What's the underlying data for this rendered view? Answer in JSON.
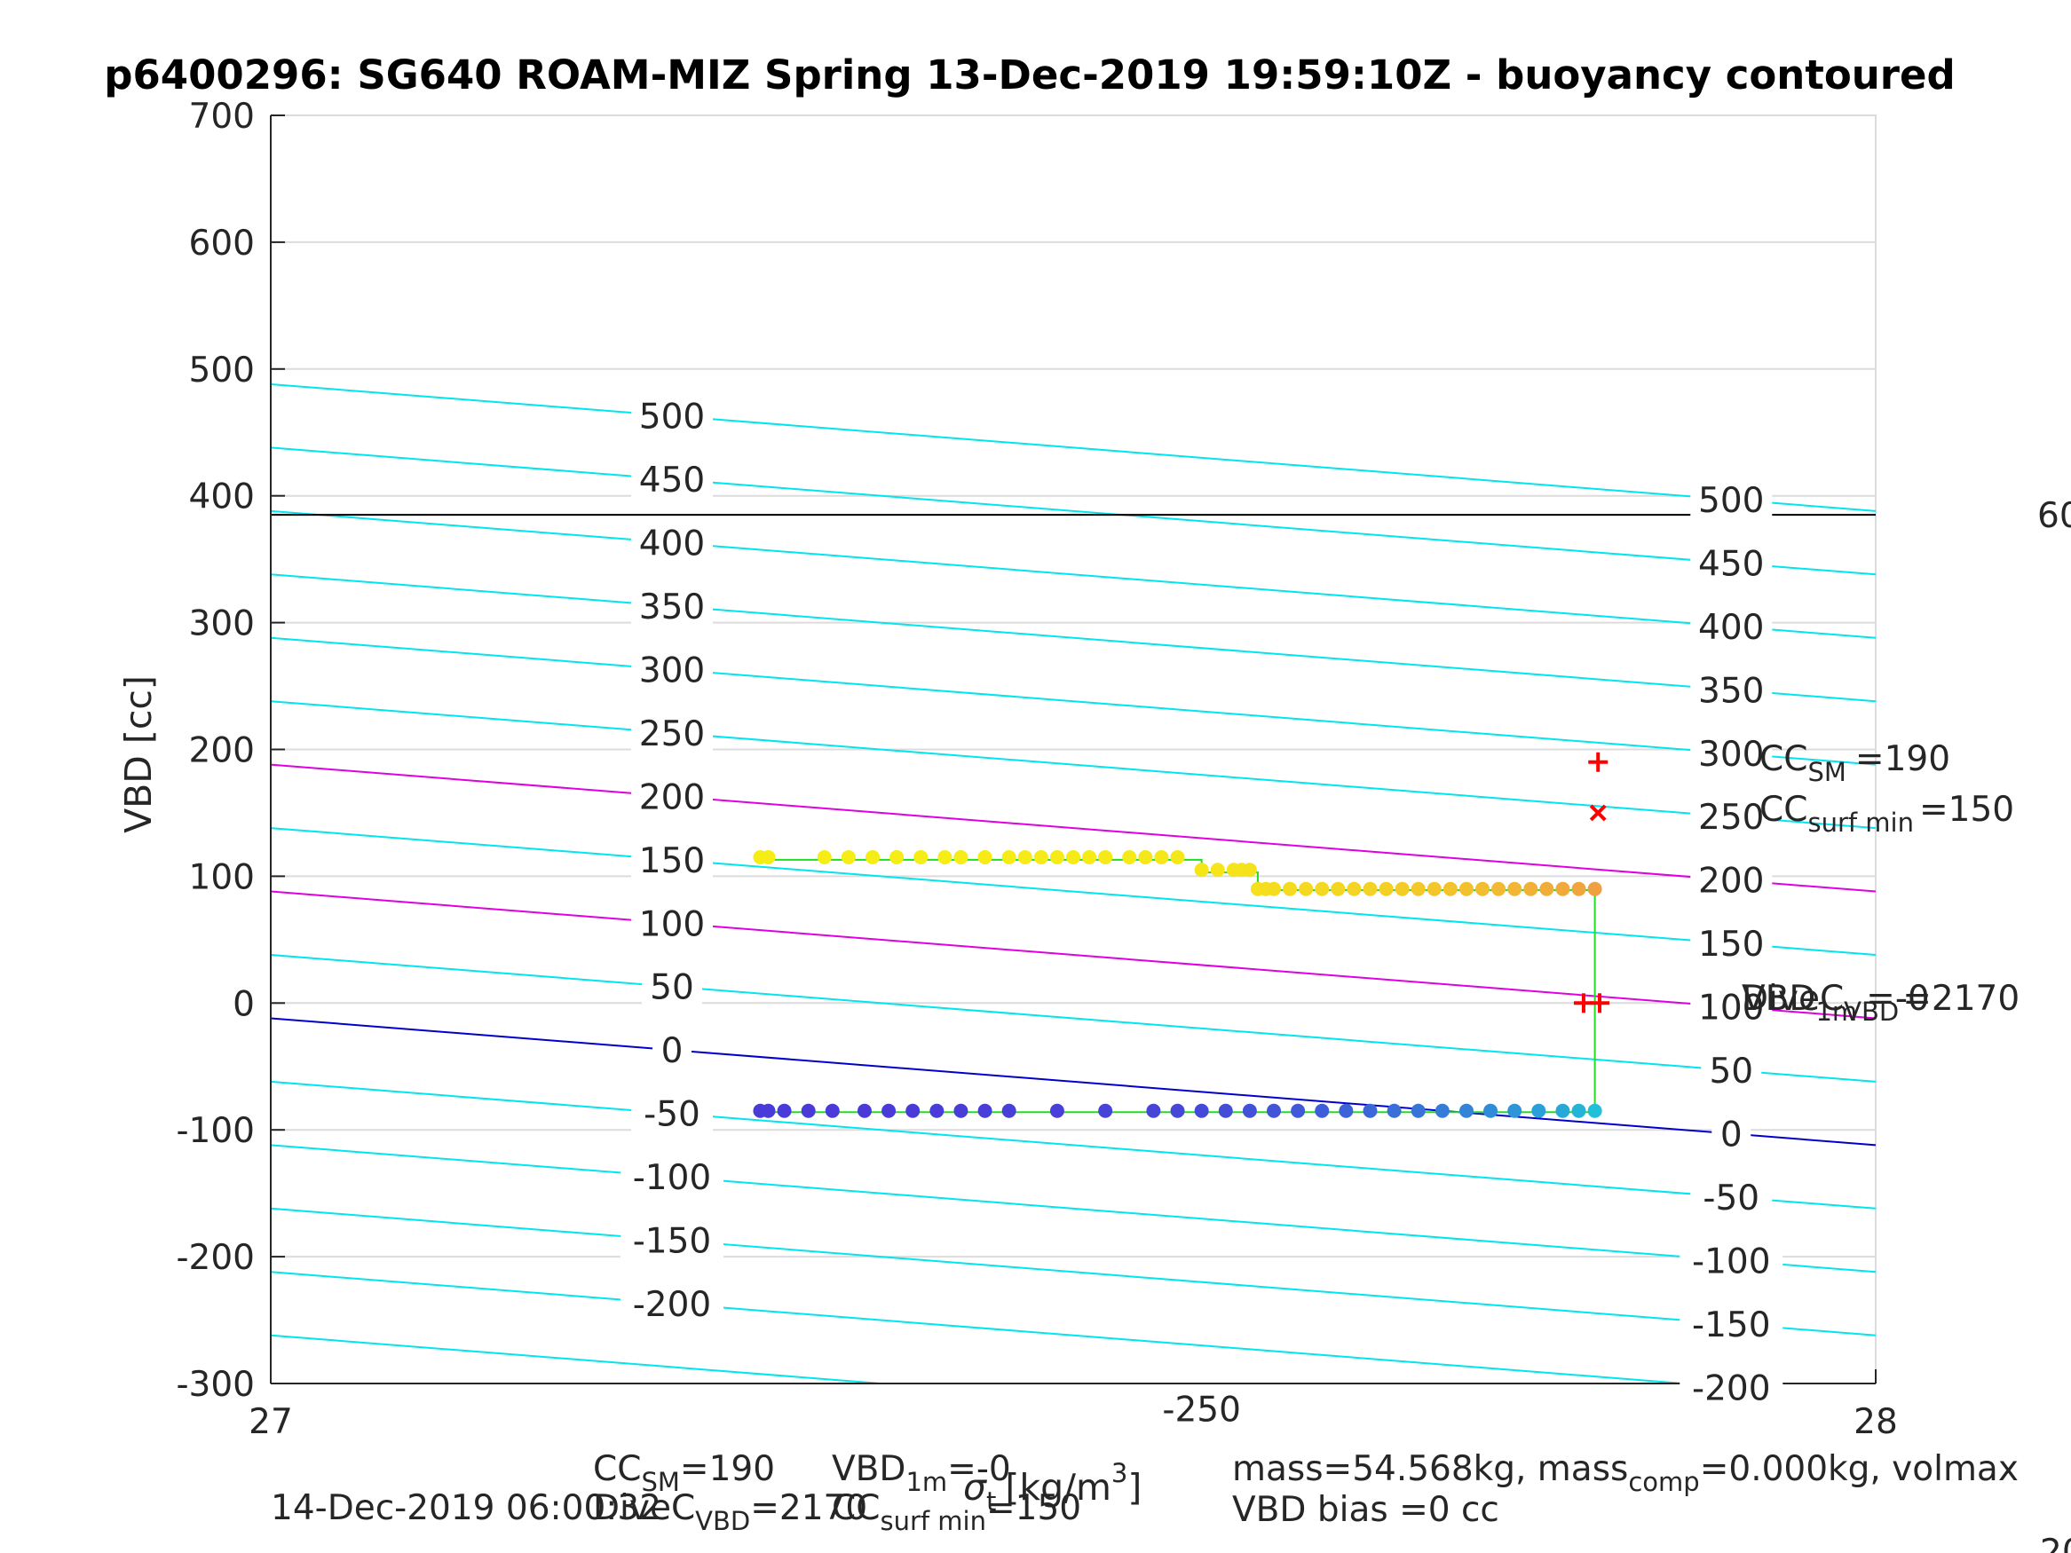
{
  "chart_data": {
    "type": "scatter",
    "title": "p6400296: SG640 ROAM-MIZ Spring 13-Dec-2019 19:59:10Z - buoyancy contoured",
    "ylabel": "VBD [cc]",
    "xlabel_parts": [
      "σ",
      "t",
      "[kg/m",
      "3",
      "]"
    ],
    "xlim": [
      27,
      28
    ],
    "ylim": [
      -300,
      700
    ],
    "x_ticks": [
      "27",
      "28"
    ],
    "y_ticks": [
      "-300",
      "-200",
      "-100",
      "0",
      "100",
      "200",
      "300",
      "400",
      "500",
      "600",
      "700"
    ],
    "grid": true,
    "colors": {
      "contour": "#00e5ee",
      "highlight_contour": "#e000e0",
      "zero_contour": "#0000cc",
      "trace": "#22dd22",
      "marker": "#ff0000",
      "hline": "#000000",
      "grid": "#dcdcdc"
    },
    "contours": {
      "levels": [
        -250,
        -200,
        -150,
        -100,
        -50,
        0,
        50,
        100,
        150,
        200,
        250,
        300,
        350,
        400,
        450,
        500
      ],
      "left_y_at_xmin": [
        -262,
        -212,
        -162,
        -112,
        -62,
        -12,
        38,
        88,
        138,
        188,
        238,
        288,
        338,
        388,
        438,
        488
      ],
      "right_y_at_xmax": [
        -362,
        -312,
        -262,
        -212,
        -162,
        -112,
        -62,
        -12,
        38,
        88,
        138,
        188,
        238,
        288,
        338,
        388
      ],
      "highlight_levels": [
        100,
        200
      ],
      "zero_level": 0,
      "labels_left": {
        "x": 27.25,
        "levels": [
          "-200",
          "-150",
          "-100",
          "-50",
          "0",
          "50",
          "100",
          "150",
          "200",
          "250",
          "300",
          "350",
          "400",
          "450",
          "500"
        ]
      },
      "labels_right": {
        "x": 27.91,
        "levels": [
          "-200",
          "-150",
          "-100",
          "-50",
          "0",
          "50",
          "100",
          "150",
          "200",
          "250",
          "300",
          "350",
          "400",
          "450",
          "500"
        ]
      },
      "label_bottom": {
        "text": "-250",
        "x": 27.58,
        "level": -250
      }
    },
    "hline": {
      "y": 385,
      "label": "60"
    },
    "series": [
      {
        "color_start": "#f6ec16",
        "color_end": "#f0a040",
        "x": [
          27.305,
          27.31,
          27.345,
          27.36,
          27.375,
          27.39,
          27.405,
          27.42,
          27.43,
          27.445,
          27.46,
          27.47,
          27.48,
          27.49,
          27.5,
          27.51,
          27.52,
          27.535,
          27.545,
          27.555,
          27.565,
          27.58,
          27.59,
          27.6,
          27.605,
          27.61,
          27.615,
          27.62,
          27.625,
          27.635,
          27.645,
          27.655,
          27.665,
          27.675,
          27.685,
          27.695,
          27.705,
          27.715,
          27.725,
          27.735,
          27.745,
          27.755,
          27.765,
          27.775,
          27.785,
          27.795,
          27.805,
          27.815,
          27.825
        ],
        "y": [
          115,
          115,
          115,
          115,
          115,
          115,
          115,
          115,
          115,
          115,
          115,
          115,
          115,
          115,
          115,
          115,
          115,
          115,
          115,
          115,
          115,
          105,
          105,
          105,
          105,
          105,
          90,
          90,
          90,
          90,
          90,
          90,
          90,
          90,
          90,
          90,
          90,
          90,
          90,
          90,
          90,
          90,
          90,
          90,
          90,
          90,
          90,
          90,
          90
        ]
      },
      {
        "color_start": "#4a3ad8",
        "color_end": "#20c0d8",
        "x": [
          27.305,
          27.31,
          27.32,
          27.335,
          27.35,
          27.37,
          27.385,
          27.4,
          27.415,
          27.43,
          27.445,
          27.46,
          27.49,
          27.52,
          27.55,
          27.565,
          27.58,
          27.595,
          27.61,
          27.625,
          27.64,
          27.655,
          27.67,
          27.685,
          27.7,
          27.715,
          27.73,
          27.745,
          27.76,
          27.775,
          27.79,
          27.805,
          27.815,
          27.825
        ],
        "y": [
          -85,
          -85,
          -85,
          -85,
          -85,
          -85,
          -85,
          -85,
          -85,
          -85,
          -85,
          -85,
          -85,
          -85,
          -85,
          -85,
          -85,
          -85,
          -85,
          -85,
          -85,
          -85,
          -85,
          -85,
          -85,
          -85,
          -85,
          -85,
          -85,
          -85,
          -85,
          -85,
          -85,
          -85
        ]
      }
    ],
    "trace": {
      "x": [
        27.305,
        27.58,
        27.58,
        27.615,
        27.615,
        27.825,
        27.825,
        27.565,
        27.305
      ],
      "y": [
        113,
        113,
        103,
        103,
        89,
        89,
        -86,
        -86,
        -86
      ]
    },
    "markers": [
      {
        "type": "plus",
        "x": 27.827,
        "y": 190
      },
      {
        "type": "x",
        "x": 27.827,
        "y": 150
      },
      {
        "type": "plus",
        "x": 27.818,
        "y": 0
      },
      {
        "type": "plus",
        "x": 27.828,
        "y": 0
      }
    ],
    "annotations": {
      "cc_sm": {
        "main": "CC",
        "sub": "SM",
        "rest": "=190"
      },
      "cc_surf_min": {
        "main": "CC",
        "sub": "surf min",
        "rest": "=150"
      },
      "vbd_overlap_1": {
        "main": "VBD",
        "sub": "1m",
        "rest": "=-0"
      },
      "vbd_overlap_2": {
        "main": "DiveC",
        "sub": "VBD",
        "rest": "=2170"
      }
    },
    "footer": {
      "col1_line1": {
        "main": "CC",
        "sub": "SM",
        "rest": "=190"
      },
      "col1_line2": {
        "main": "DiveC",
        "sub": "VBD",
        "rest": "=2170"
      },
      "col2_line1": {
        "main": "VBD",
        "sub": "1m",
        "rest": "=-0"
      },
      "col2_line2": {
        "main": "CC",
        "sub": "surf min",
        "rest": "=150"
      },
      "timestamp": "14-Dec-2019 06:00:32",
      "mass_line": {
        "a": "mass=54.568kg, mass",
        "sub": "comp",
        "b": "=0.000kg, volmax"
      },
      "vbd_bias": "VBD bias =0 cc",
      "corner_fragment": "20"
    }
  }
}
